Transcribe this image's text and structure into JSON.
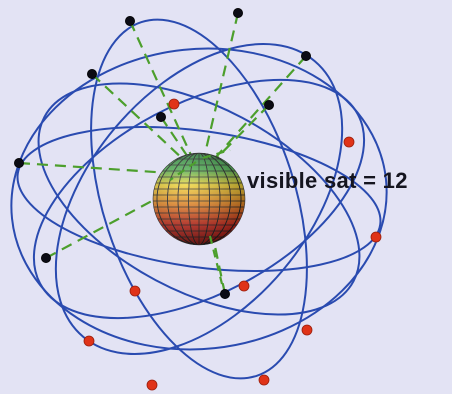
{
  "label": {
    "text": "visible sat = 12"
  },
  "colors": {
    "background": "#e3e3f4",
    "orbit": "#2a4bb0",
    "visible_satellite": "#0b0b14",
    "hidden_satellite": "#e03318",
    "line_of_sight": "#4c9f2c"
  }
}
